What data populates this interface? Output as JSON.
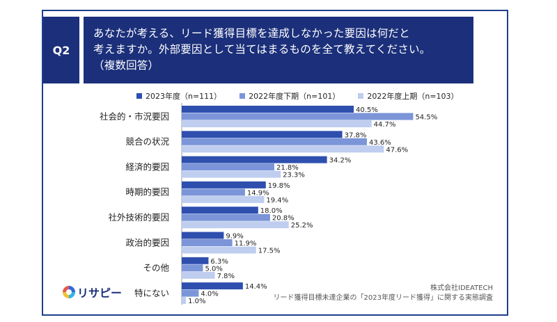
{
  "question": {
    "badge": "Q2",
    "lines": [
      "あなたが考える、リード獲得目標を達成しなかった要因は何だと",
      "考えますか。外部要因として当てはまるものを全て教えてください。",
      "（複数回答）"
    ]
  },
  "colors": {
    "frame": "#1d3f8c",
    "header_bg": "#1b2f7a",
    "series_2023": "#2e4fae",
    "series_2022_second_half": "#7b95d8",
    "series_2022_first_half": "#bfcdef"
  },
  "footer": {
    "logo_text": "リサピー",
    "company": "株式会社IDEATECH",
    "survey": "リード獲得目標未達企業の「2023年度リード獲得」に関する実態調査"
  },
  "chart_data": {
    "type": "bar",
    "orientation": "horizontal",
    "categories": [
      "社会的・市況要因",
      "競合の状況",
      "経済的要因",
      "時期的要因",
      "社外技術的要因",
      "政治的要因",
      "その他",
      "特にない"
    ],
    "series": [
      {
        "name": "2023年度（n=111）",
        "values": [
          40.5,
          37.8,
          34.2,
          19.8,
          18.0,
          9.9,
          6.3,
          14.4
        ],
        "labels": [
          "40.5%",
          "37.8%",
          "34.2%",
          "19.8%",
          "18.0%",
          "9.9%",
          "6.3%",
          "14.4%"
        ]
      },
      {
        "name": "2022年度下期（n=101）",
        "values": [
          54.5,
          43.6,
          21.8,
          14.9,
          20.8,
          11.9,
          5.0,
          4.0
        ],
        "labels": [
          "54.5%",
          "43.6%",
          "21.8%",
          "14.9%",
          "20.8%",
          "11.9%",
          "5.0%",
          "4.0%"
        ]
      },
      {
        "name": "2022年度上期（n=103）",
        "values": [
          44.7,
          47.6,
          23.3,
          19.4,
          25.2,
          17.5,
          7.8,
          1.0
        ],
        "labels": [
          "44.7%",
          "47.6%",
          "23.3%",
          "19.4%",
          "25.2%",
          "17.5%",
          "7.8%",
          "1.0%"
        ]
      }
    ],
    "xlim": [
      0,
      60
    ],
    "grid": false,
    "legend_position": "top"
  }
}
